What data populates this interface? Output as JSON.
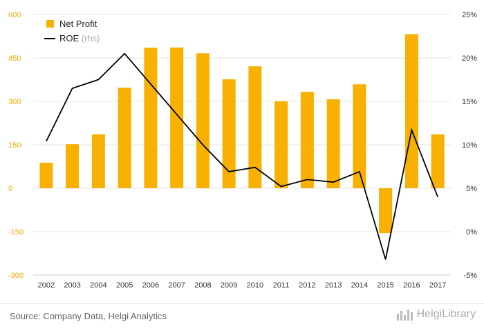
{
  "chart_data": {
    "type": "bar",
    "categories": [
      "2002",
      "2003",
      "2004",
      "2005",
      "2006",
      "2007",
      "2008",
      "2009",
      "2010",
      "2011",
      "2012",
      "2013",
      "2014",
      "2015",
      "2016",
      "2017"
    ],
    "series": [
      {
        "name": "Net Profit",
        "type": "bar",
        "axis": "left",
        "color": "#F8B100",
        "values": [
          88,
          152,
          186,
          347,
          485,
          486,
          466,
          376,
          421,
          300,
          333,
          307,
          359,
          -155,
          532,
          186
        ]
      },
      {
        "name": "ROE (rhs)",
        "type": "line",
        "axis": "right",
        "color": "#000000",
        "values": [
          10.4,
          16.5,
          17.5,
          20.5,
          17.0,
          13.5,
          10.0,
          6.9,
          7.4,
          5.2,
          6.0,
          5.7,
          6.9,
          -3.2,
          11.7,
          4.0
        ]
      }
    ],
    "legend": [
      {
        "label": "Net Profit",
        "sub": ""
      },
      {
        "label": "ROE",
        "sub": "(rhs)"
      }
    ],
    "y_left": {
      "min": -300,
      "max": 600,
      "ticks": [
        "600",
        "450",
        "300",
        "150",
        "0",
        "-150",
        "-300"
      ],
      "tick_values": [
        600,
        450,
        300,
        150,
        0,
        -150,
        -300
      ]
    },
    "y_right": {
      "min": -5,
      "max": 25,
      "ticks": [
        "25%",
        "20%",
        "15%",
        "10%",
        "5%",
        "0%",
        "-5%"
      ],
      "tick_values": [
        25,
        20,
        15,
        10,
        5,
        0,
        -5
      ]
    },
    "grid": true,
    "legend_position": "top-left"
  },
  "footer": {
    "source": "Source: Company Data, Helgi Analytics",
    "logo": "HelgiLibrary"
  },
  "colors": {
    "bar": "#F8B100",
    "line": "#000000",
    "left_ticks": "#F5A800",
    "right_ticks": "#333333",
    "grid": "#e6e6e6"
  }
}
